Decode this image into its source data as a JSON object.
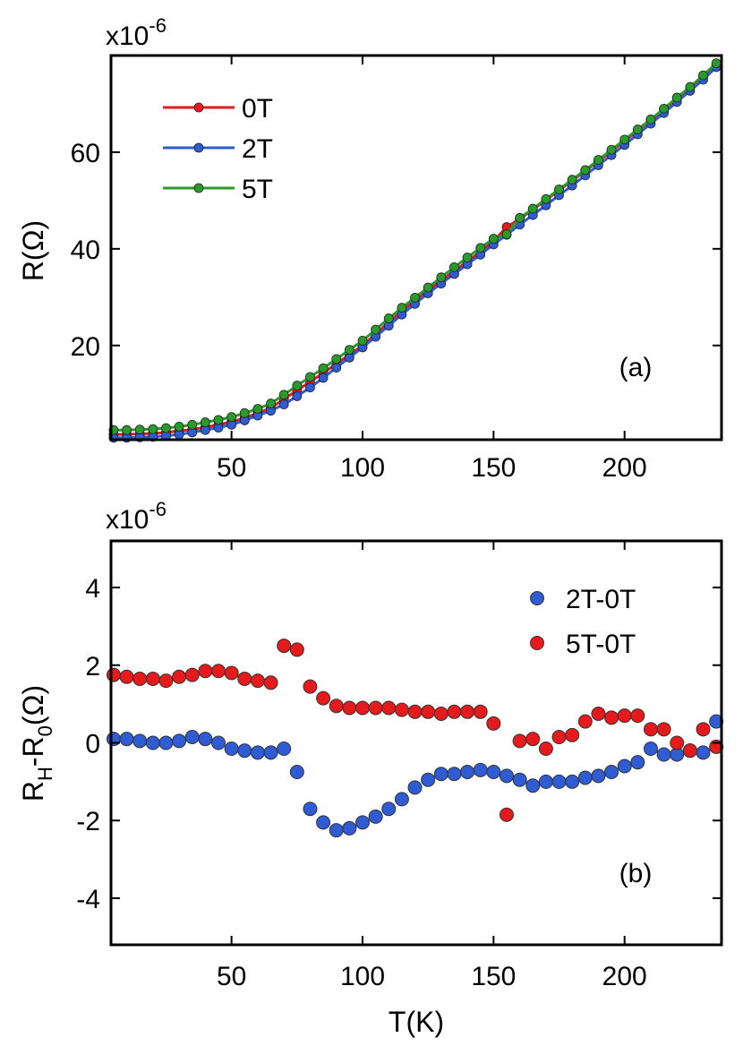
{
  "chart_data": [
    {
      "type": "line",
      "panel_label": "(a)",
      "ylabel": "R(Ω)",
      "ylabel_prefix": "R(",
      "ylabel_omega": "Ω",
      "ylabel_suffix": ")",
      "y_exponent_base": "x10",
      "y_exponent_power": "-6",
      "xlim": [
        4,
        237
      ],
      "ylim": [
        0.5,
        80
      ],
      "xticks": [
        50,
        100,
        150,
        200
      ],
      "xtick_labels": [
        "50",
        "100",
        "150",
        "200"
      ],
      "yticks": [
        20,
        40,
        60
      ],
      "ytick_labels": [
        "20",
        "40",
        "60"
      ],
      "legend_position": "top-left",
      "series": [
        {
          "name": "0T",
          "color": "#e41a1c",
          "x": [
            5,
            10,
            15,
            20,
            25,
            30,
            35,
            40,
            45,
            50,
            55,
            60,
            65,
            70,
            75,
            80,
            85,
            90,
            95,
            100,
            105,
            110,
            115,
            120,
            125,
            130,
            135,
            140,
            145,
            150,
            155,
            160,
            165,
            170,
            175,
            180,
            185,
            190,
            195,
            200,
            205,
            210,
            215,
            220,
            225,
            230,
            235
          ],
          "y": [
            1.6,
            1.6,
            1.7,
            1.8,
            2.0,
            2.3,
            2.6,
            3.1,
            3.6,
            4.2,
            5.0,
            6.0,
            7.1,
            8.9,
            10.7,
            12.5,
            14.3,
            16.2,
            18.1,
            20.0,
            22.4,
            24.8,
            27.1,
            29.3,
            31.4,
            33.4,
            35.4,
            37.4,
            39.4,
            41.6,
            44.5,
            46.2,
            48.1,
            50.1,
            52.1,
            54.1,
            56.1,
            58.1,
            60.2,
            62.3,
            64.5,
            66.6,
            68.8,
            71.0,
            73.3,
            75.6,
            78.0
          ]
        },
        {
          "name": "2T",
          "color": "#2f5bd3",
          "x": [
            5,
            10,
            15,
            20,
            25,
            30,
            35,
            40,
            45,
            50,
            55,
            60,
            65,
            70,
            75,
            80,
            85,
            90,
            95,
            100,
            105,
            110,
            115,
            120,
            125,
            130,
            135,
            140,
            145,
            150,
            155,
            160,
            165,
            170,
            175,
            180,
            185,
            190,
            195,
            200,
            205,
            210,
            215,
            220,
            225,
            230,
            235
          ],
          "y": [
            0.9,
            0.9,
            1.0,
            1.1,
            1.3,
            1.6,
            2.0,
            2.5,
            3.0,
            3.6,
            4.5,
            5.5,
            6.5,
            7.8,
            9.5,
            11.3,
            13.3,
            15.4,
            17.5,
            19.6,
            21.8,
            24.1,
            26.4,
            28.6,
            30.8,
            32.8,
            34.8,
            36.8,
            38.8,
            40.9,
            42.9,
            45.0,
            47.0,
            49.0,
            51.1,
            53.1,
            55.2,
            57.3,
            59.4,
            61.5,
            63.7,
            65.9,
            68.1,
            70.4,
            72.7,
            75.0,
            77.6
          ]
        },
        {
          "name": "5T",
          "color": "#2a9a2a",
          "x": [
            5,
            10,
            15,
            20,
            25,
            30,
            35,
            40,
            45,
            50,
            55,
            60,
            65,
            70,
            75,
            80,
            85,
            90,
            95,
            100,
            105,
            110,
            115,
            120,
            125,
            130,
            135,
            140,
            145,
            150,
            155,
            160,
            165,
            170,
            175,
            180,
            185,
            190,
            195,
            200,
            205,
            210,
            215,
            220,
            225,
            230,
            235
          ],
          "y": [
            2.5,
            2.5,
            2.6,
            2.7,
            2.9,
            3.2,
            3.6,
            4.1,
            4.6,
            5.2,
            6.0,
            6.9,
            8.0,
            9.8,
            11.7,
            13.5,
            15.3,
            17.2,
            19.1,
            21.0,
            23.3,
            25.6,
            27.8,
            29.9,
            32.0,
            34.1,
            36.2,
            38.2,
            40.2,
            42.1,
            43.0,
            46.4,
            48.3,
            50.3,
            52.3,
            54.3,
            56.3,
            58.4,
            60.5,
            62.6,
            64.7,
            66.8,
            69.0,
            71.3,
            73.5,
            75.9,
            78.4
          ]
        }
      ]
    },
    {
      "type": "scatter",
      "panel_label": "(b)",
      "xlabel": "T(K)",
      "ylabel_main": "R",
      "ylabel_sub1": "H",
      "ylabel_mid": "-R",
      "ylabel_sub2": "0",
      "ylabel_end": "(Ω)",
      "y_exponent_base": "x10",
      "y_exponent_power": "-6",
      "xlim": [
        4,
        237
      ],
      "ylim": [
        -5.2,
        5.2
      ],
      "xticks": [
        50,
        100,
        150,
        200
      ],
      "xtick_labels": [
        "50",
        "100",
        "150",
        "200"
      ],
      "yticks": [
        -4,
        -2,
        0,
        2,
        4
      ],
      "ytick_labels": [
        "-4",
        "-2",
        "0",
        "2",
        "4"
      ],
      "legend_position": "top-right",
      "series": [
        {
          "name": "2T-0T",
          "color": "#2f5bd3",
          "x": [
            5,
            10,
            15,
            20,
            25,
            30,
            35,
            40,
            45,
            50,
            55,
            60,
            65,
            70,
            75,
            80,
            85,
            90,
            95,
            100,
            105,
            110,
            115,
            120,
            125,
            130,
            135,
            140,
            145,
            150,
            155,
            160,
            165,
            170,
            175,
            180,
            185,
            190,
            195,
            200,
            205,
            210,
            215,
            220,
            225,
            230,
            235
          ],
          "y": [
            0.1,
            0.1,
            0.05,
            0.0,
            0.0,
            0.05,
            0.15,
            0.1,
            0.0,
            -0.15,
            -0.2,
            -0.25,
            -0.25,
            -0.15,
            -0.75,
            -1.7,
            -2.05,
            -2.25,
            -2.2,
            -2.05,
            -1.9,
            -1.7,
            -1.45,
            -1.15,
            -0.95,
            -0.8,
            -0.8,
            -0.75,
            -0.7,
            -0.75,
            -0.85,
            -0.95,
            -1.1,
            -1.0,
            -1.0,
            -1.0,
            -0.9,
            -0.85,
            -0.75,
            -0.6,
            -0.5,
            -0.15,
            -0.3,
            -0.3,
            -0.2,
            -0.25,
            0.55
          ]
        },
        {
          "name": "5T-0T",
          "color": "#e41a1c",
          "x": [
            5,
            10,
            15,
            20,
            25,
            30,
            35,
            40,
            45,
            50,
            55,
            60,
            65,
            70,
            75,
            80,
            85,
            90,
            95,
            100,
            105,
            110,
            115,
            120,
            125,
            130,
            135,
            140,
            145,
            150,
            155,
            160,
            165,
            170,
            175,
            180,
            185,
            190,
            195,
            200,
            205,
            210,
            215,
            220,
            225,
            230,
            235
          ],
          "y": [
            1.75,
            1.7,
            1.65,
            1.65,
            1.6,
            1.7,
            1.75,
            1.85,
            1.85,
            1.8,
            1.65,
            1.6,
            1.55,
            2.5,
            2.4,
            1.45,
            1.15,
            0.95,
            0.9,
            0.9,
            0.9,
            0.9,
            0.85,
            0.8,
            0.8,
            0.75,
            0.8,
            0.8,
            0.8,
            0.5,
            -1.85,
            0.05,
            0.1,
            -0.15,
            0.15,
            0.2,
            0.55,
            0.75,
            0.65,
            0.7,
            0.7,
            0.35,
            0.35,
            0.0,
            -0.2,
            0.35,
            -0.1
          ]
        }
      ]
    }
  ]
}
